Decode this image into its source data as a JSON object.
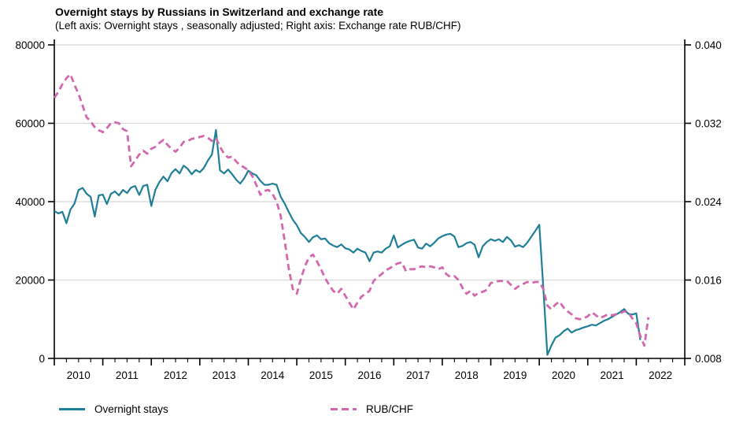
{
  "chart_data": {
    "type": "line",
    "title": "Overnight stays by Russians in Switzerland and exchange rate",
    "subtitle": "(Left axis: Overnight stays , seasonally adjusted; Right axis: Exchange rate RUB/CHF)",
    "grid": "horizontal",
    "grid_color": "#d8d8d8",
    "axis_color": "#000000",
    "legend_position": "bottom",
    "x_axis": {
      "min": 2010,
      "max": 2023,
      "major_ticks": [
        2010,
        2011,
        2012,
        2013,
        2014,
        2015,
        2016,
        2017,
        2018,
        2019,
        2020,
        2021,
        2022,
        2023
      ],
      "minor_ticks_per_year": 4,
      "labels": [
        "2010",
        "2011",
        "2012",
        "2013",
        "2014",
        "2015",
        "2016",
        "2017",
        "2018",
        "2019",
        "2020",
        "2021",
        "2022"
      ]
    },
    "left_axis": {
      "min": 0,
      "max": 80000,
      "ticks": [
        {
          "v": 0,
          "label": "0"
        },
        {
          "v": 20000,
          "label": "20000"
        },
        {
          "v": 40000,
          "label": "40000"
        },
        {
          "v": 60000,
          "label": "60000"
        },
        {
          "v": 80000,
          "label": "80000"
        }
      ]
    },
    "right_axis": {
      "min": 0.008,
      "max": 0.04,
      "ticks": [
        {
          "v": 0.008,
          "label": "0.008"
        },
        {
          "v": 0.016,
          "label": "0.016"
        },
        {
          "v": 0.024,
          "label": "0.024"
        },
        {
          "v": 0.032,
          "label": "0.032"
        },
        {
          "v": 0.04,
          "label": "0.040"
        }
      ]
    },
    "series": [
      {
        "name": "Overnight stays",
        "axis": "left",
        "color": "#1f7f96",
        "style": "solid",
        "start": "2010-01",
        "frequency": "monthly",
        "values": [
          37600,
          37000,
          37400,
          34500,
          38000,
          39500,
          43000,
          43500,
          42000,
          41200,
          36200,
          41600,
          41800,
          39400,
          42000,
          42600,
          41600,
          43000,
          42200,
          43600,
          44000,
          41700,
          44000,
          44300,
          38900,
          43000,
          45000,
          46400,
          45200,
          47300,
          48300,
          47200,
          49200,
          48400,
          47000,
          48100,
          47500,
          48600,
          50500,
          52000,
          58300,
          48000,
          47200,
          48200,
          47000,
          45600,
          44600,
          46000,
          47900,
          47200,
          46700,
          45300,
          44300,
          44300,
          44600,
          44300,
          41300,
          39500,
          37400,
          35400,
          34000,
          32000,
          31000,
          29700,
          30900,
          31400,
          30400,
          30600,
          29400,
          28800,
          28400,
          29100,
          28100,
          27800,
          27000,
          28000,
          27400,
          27000,
          24800,
          27000,
          27300,
          27000,
          28000,
          28600,
          31400,
          28300,
          29000,
          29600,
          30000,
          30300,
          28300,
          28000,
          29300,
          28600,
          29500,
          30600,
          31200,
          31600,
          31800,
          31100,
          28400,
          28700,
          29400,
          29700,
          29000,
          25800,
          28600,
          29700,
          30400,
          30000,
          30400,
          29700,
          31000,
          30100,
          28500,
          28900,
          28400,
          29500,
          31000,
          32500,
          34100,
          18000,
          900,
          3300,
          5300,
          5900,
          6900,
          7600,
          6600,
          7200,
          7500,
          7900,
          8200,
          8600,
          8400,
          9000,
          9600,
          10000,
          10600,
          11200,
          11800,
          12600,
          11400,
          11200,
          11500,
          4700
        ]
      },
      {
        "name": "RUB/CHF",
        "axis": "right",
        "color": "#d269ae",
        "style": "dashed",
        "start": "2010-01",
        "frequency": "monthly",
        "values": [
          0.0346,
          0.0352,
          0.036,
          0.0366,
          0.037,
          0.0359,
          0.035,
          0.0338,
          0.0326,
          0.0322,
          0.0316,
          0.0313,
          0.0311,
          0.0315,
          0.032,
          0.0321,
          0.032,
          0.0314,
          0.0312,
          0.0276,
          0.0282,
          0.0288,
          0.0292,
          0.0289,
          0.0294,
          0.0296,
          0.03,
          0.0303,
          0.0298,
          0.0294,
          0.0291,
          0.0295,
          0.0301,
          0.0302,
          0.0304,
          0.0305,
          0.0306,
          0.0307,
          0.0305,
          0.0302,
          0.0305,
          0.0296,
          0.0289,
          0.0285,
          0.0286,
          0.0281,
          0.0277,
          0.0275,
          0.0272,
          0.0266,
          0.0257,
          0.0247,
          0.0251,
          0.0252,
          0.0248,
          0.024,
          0.0226,
          0.02,
          0.0172,
          0.0151,
          0.0146,
          0.0161,
          0.0174,
          0.0183,
          0.0186,
          0.0179,
          0.0171,
          0.0162,
          0.0155,
          0.0149,
          0.0146,
          0.0151,
          0.0144,
          0.0137,
          0.013,
          0.0137,
          0.0143,
          0.0146,
          0.0149,
          0.0159,
          0.0163,
          0.0166,
          0.017,
          0.0172,
          0.0175,
          0.0177,
          0.0178,
          0.0169,
          0.0171,
          0.0171,
          0.0173,
          0.0174,
          0.0173,
          0.0174,
          0.0173,
          0.0171,
          0.0173,
          0.0166,
          0.0163,
          0.0164,
          0.016,
          0.0152,
          0.0146,
          0.0149,
          0.0144,
          0.0147,
          0.0148,
          0.015,
          0.0157,
          0.0158,
          0.0159,
          0.0159,
          0.0159,
          0.0155,
          0.0151,
          0.0154,
          0.0156,
          0.0158,
          0.0157,
          0.0158,
          0.0158,
          0.0151,
          0.0134,
          0.013,
          0.0135,
          0.0138,
          0.0132,
          0.0128,
          0.0125,
          0.0121,
          0.012,
          0.0121,
          0.0123,
          0.0127,
          0.0124,
          0.0121,
          0.0123,
          0.0125,
          0.0124,
          0.0125,
          0.0126,
          0.0128,
          0.0127,
          0.0121,
          0.0116,
          0.0103,
          0.0093,
          0.0122
        ]
      }
    ]
  }
}
